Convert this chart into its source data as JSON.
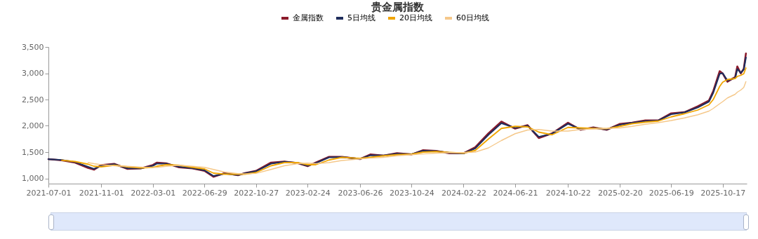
{
  "chart_data": {
    "type": "line",
    "title": "贵金属指数",
    "legend": "top",
    "grid": false,
    "marker": "none",
    "line_style": "solid",
    "x": [
      "2021-07-01",
      "2021-08-01",
      "2021-09-01",
      "2021-10-01",
      "2021-10-15",
      "2021-11-01",
      "2021-12-01",
      "2022-01-01",
      "2022-02-01",
      "2022-03-01",
      "2022-03-10",
      "2022-04-01",
      "2022-05-01",
      "2022-06-01",
      "2022-06-29",
      "2022-07-20",
      "2022-08-15",
      "2022-09-15",
      "2022-10-01",
      "2022-10-27",
      "2022-12-01",
      "2023-01-01",
      "2023-02-01",
      "2023-02-24",
      "2023-03-15",
      "2023-04-15",
      "2023-05-15",
      "2023-06-26",
      "2023-07-20",
      "2023-08-20",
      "2023-09-20",
      "2023-10-24",
      "2023-11-20",
      "2023-12-20",
      "2024-01-20",
      "2024-02-22",
      "2024-03-20",
      "2024-04-20",
      "2024-05-20",
      "2024-06-21",
      "2024-07-20",
      "2024-08-15",
      "2024-09-15",
      "2024-10-22",
      "2024-11-20",
      "2024-12-20",
      "2025-01-20",
      "2025-02-20",
      "2025-03-20",
      "2025-04-20",
      "2025-05-20",
      "2025-06-19",
      "2025-07-20",
      "2025-08-20",
      "2025-09-15",
      "2025-09-25",
      "2025-10-10",
      "2025-10-17",
      "2025-10-28",
      "2025-11-15",
      "2025-11-20",
      "2025-11-28",
      "2025-12-05",
      "2025-12-10"
    ],
    "xlim": [
      "2021-07-01",
      "2025-12-12"
    ],
    "xticks": [
      "2021-07-01",
      "2021-11-01",
      "2022-03-01",
      "2022-06-29",
      "2022-10-27",
      "2023-02-24",
      "2023-06-26",
      "2023-10-24",
      "2024-02-22",
      "2024-06-21",
      "2024-10-22",
      "2025-02-20",
      "2025-06-19",
      "2025-10-17"
    ],
    "ylim": [
      900,
      3500
    ],
    "yticks": [
      {
        "value": 1000,
        "label": "1,000"
      },
      {
        "value": 1500,
        "label": "1,500"
      },
      {
        "value": 2000,
        "label": "2,000"
      },
      {
        "value": 2500,
        "label": "2,500"
      },
      {
        "value": 3000,
        "label": "3,000"
      },
      {
        "value": 3500,
        "label": "3,500"
      }
    ],
    "series": [
      {
        "name": "金属指数",
        "color": "#8b1a2b",
        "values": [
          1366,
          1344,
          1300,
          1200,
          1165,
          1254,
          1277,
          1180,
          1190,
          1254,
          1300,
          1286,
          1210,
          1190,
          1143,
          1030,
          1100,
          1060,
          1100,
          1143,
          1300,
          1321,
          1290,
          1232,
          1300,
          1410,
          1410,
          1366,
          1455,
          1433,
          1478,
          1455,
          1536,
          1522,
          1478,
          1478,
          1590,
          1857,
          2080,
          1946,
          2013,
          1768,
          1857,
          2058,
          1924,
          1969,
          1924,
          2036,
          2058,
          2103,
          2103,
          2237,
          2259,
          2371,
          2482,
          2661,
          3040,
          2996,
          2839,
          2929,
          3129,
          2996,
          3085,
          3375
        ]
      },
      {
        "name": "5日均线",
        "color": "#1f2d5c",
        "values": [
          1366,
          1350,
          1310,
          1220,
          1180,
          1240,
          1270,
          1190,
          1190,
          1240,
          1280,
          1280,
          1220,
          1195,
          1155,
          1045,
          1090,
          1065,
          1095,
          1135,
          1280,
          1315,
          1295,
          1240,
          1290,
          1400,
          1405,
          1370,
          1440,
          1435,
          1470,
          1460,
          1525,
          1520,
          1485,
          1475,
          1570,
          1830,
          2050,
          1960,
          2000,
          1790,
          1850,
          2040,
          1935,
          1960,
          1930,
          2020,
          2055,
          2090,
          2100,
          2220,
          2255,
          2350,
          2460,
          2630,
          2990,
          3000,
          2860,
          2910,
          3080,
          3010,
          3070,
          3300
        ]
      },
      {
        "name": "20日均线",
        "color": "#f0a500",
        "values": [
          null,
          1345,
          1320,
          1270,
          1230,
          1220,
          1250,
          1220,
          1200,
          1210,
          1230,
          1260,
          1250,
          1210,
          1180,
          1100,
          1080,
          1080,
          1080,
          1110,
          1240,
          1300,
          1300,
          1260,
          1260,
          1350,
          1400,
          1380,
          1400,
          1430,
          1450,
          1460,
          1500,
          1510,
          1495,
          1480,
          1530,
          1750,
          1950,
          1990,
          1980,
          1880,
          1830,
          1970,
          1960,
          1950,
          1945,
          1990,
          2040,
          2070,
          2090,
          2170,
          2230,
          2300,
          2400,
          2500,
          2750,
          2830,
          2880,
          2900,
          2940,
          2960,
          2990,
          3100
        ]
      },
      {
        "name": "60日均线",
        "color": "#f5c88a",
        "values": [
          null,
          null,
          null,
          1300,
          1280,
          1260,
          1240,
          1230,
          1215,
          1205,
          1210,
          1230,
          1250,
          1230,
          1210,
          1170,
          1120,
          1090,
          1085,
          1095,
          1170,
          1240,
          1280,
          1290,
          1280,
          1300,
          1340,
          1370,
          1385,
          1400,
          1430,
          1450,
          1465,
          1480,
          1490,
          1490,
          1500,
          1580,
          1720,
          1850,
          1920,
          1930,
          1900,
          1900,
          1930,
          1940,
          1950,
          1960,
          1990,
          2030,
          2060,
          2100,
          2150,
          2210,
          2280,
          2330,
          2420,
          2460,
          2530,
          2600,
          2640,
          2680,
          2730,
          2840
        ]
      }
    ]
  }
}
